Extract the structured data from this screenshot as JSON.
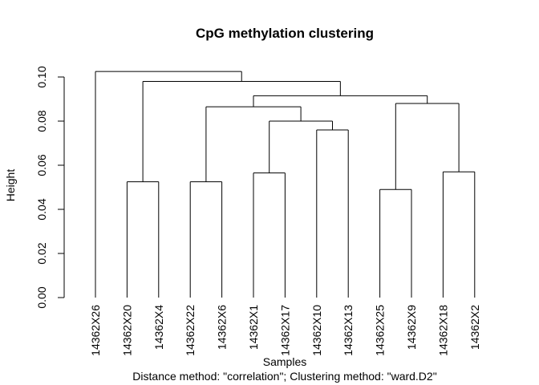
{
  "chart_data": {
    "type": "dendrogram",
    "title": "CpG methylation clustering",
    "xlabel": "Samples",
    "ylabel": "Height",
    "subtitle": "Distance method: \"correlation\"; Clustering method: \"ward.D2\"",
    "ylim": [
      0,
      0.1
    ],
    "yticks": [
      "0.00",
      "0.02",
      "0.04",
      "0.06",
      "0.08",
      "0.10"
    ],
    "grid": false,
    "leaves": [
      "14362X26",
      "14362X20",
      "14362X4",
      "14362X22",
      "14362X6",
      "14362X1",
      "14362X17",
      "14362X10",
      "14362X13",
      "14362X25",
      "14362X9",
      "14362X18",
      "14362X2"
    ],
    "merges": [
      {
        "left": "14362X20",
        "right": "14362X4",
        "height": 0.0525
      },
      {
        "left": "14362X22",
        "right": "14362X6",
        "height": 0.0525
      },
      {
        "left": "14362X1",
        "right": "14362X17",
        "height": 0.0565
      },
      {
        "left": "14362X10",
        "right": "14362X13",
        "height": 0.076
      },
      {
        "left": "14362X25",
        "right": "14362X9",
        "height": 0.049
      },
      {
        "left": "14362X18",
        "right": "14362X2",
        "height": 0.057
      },
      {
        "left": "{14362X1,14362X17}",
        "right": "{14362X10,14362X13}",
        "height": 0.08
      },
      {
        "left": "{14362X22,14362X6}",
        "right": "{14362X1,14362X17,14362X10,14362X13}",
        "height": 0.0865
      },
      {
        "left": "{14362X25,14362X9}",
        "right": "{14362X18,14362X2}",
        "height": 0.088
      },
      {
        "left": "{14362X22 … 14362X13}",
        "right": "{14362X25 … 14362X2}",
        "height": 0.0915
      },
      {
        "left": "{14362X20,14362X4}",
        "right": "{14362X22 … 14362X2}",
        "height": 0.098
      },
      {
        "left": "14362X26",
        "right": "{14362X20 … 14362X2}",
        "height": 0.1025
      }
    ]
  }
}
